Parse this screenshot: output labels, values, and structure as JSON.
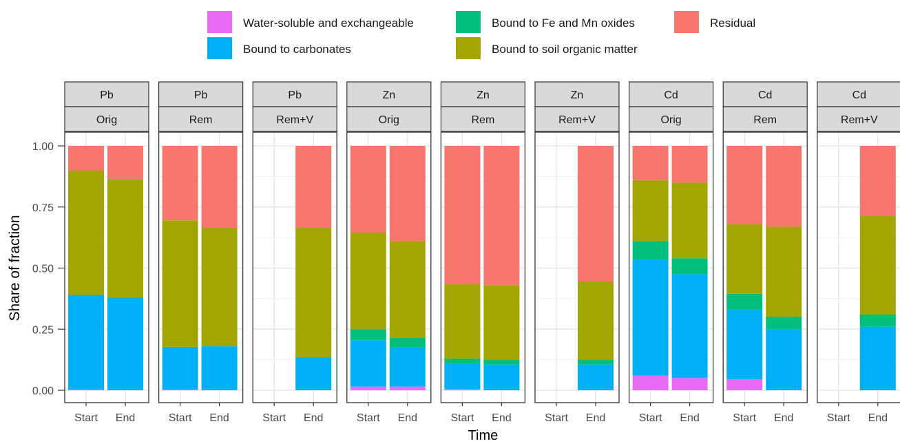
{
  "chart_data": {
    "type": "bar",
    "stacked": true,
    "xlabel": "Time",
    "ylabel": "Share of fraction",
    "ylim": [
      0,
      1
    ],
    "yticks": [
      "0.00",
      "0.25",
      "0.50",
      "0.75",
      "1.00"
    ],
    "categories": [
      "Start",
      "End"
    ],
    "legend_position": "top",
    "series": [
      {
        "name": "Water-soluble and exchangeable",
        "color": "#E76BF3"
      },
      {
        "name": "Bound to carbonates",
        "color": "#00B0F6"
      },
      {
        "name": "Bound to Fe and Mn oxides",
        "color": "#00BF7D"
      },
      {
        "name": "Bound to soil organic matter",
        "color": "#A3A500"
      },
      {
        "name": "Residual",
        "color": "#F8766D"
      }
    ],
    "legend_order": [
      0,
      2,
      4,
      1,
      3
    ],
    "panels": [
      {
        "metal": "Pb",
        "treatment": "Orig",
        "values": {
          "Start": [
            0.003,
            0.387,
            0.0,
            0.51,
            0.1
          ],
          "End": [
            0.0,
            0.38,
            0.0,
            0.485,
            0.135
          ]
        }
      },
      {
        "metal": "Pb",
        "treatment": "Rem",
        "values": {
          "Start": [
            0.003,
            0.175,
            0.0,
            0.517,
            0.305
          ],
          "End": [
            0.0,
            0.18,
            0.0,
            0.485,
            0.335
          ]
        }
      },
      {
        "metal": "Pb",
        "treatment": "Rem+V",
        "values": {
          "Start": null,
          "End": [
            0.0,
            0.135,
            0.0,
            0.53,
            0.335
          ]
        }
      },
      {
        "metal": "Zn",
        "treatment": "Orig",
        "values": {
          "Start": [
            0.015,
            0.19,
            0.045,
            0.395,
            0.355
          ],
          "End": [
            0.015,
            0.16,
            0.04,
            0.395,
            0.39
          ]
        }
      },
      {
        "metal": "Zn",
        "treatment": "Rem",
        "values": {
          "Start": [
            0.005,
            0.105,
            0.02,
            0.305,
            0.565
          ],
          "End": [
            0.0,
            0.105,
            0.02,
            0.305,
            0.57
          ]
        }
      },
      {
        "metal": "Zn",
        "treatment": "Rem+V",
        "values": {
          "Start": null,
          "End": [
            0.0,
            0.105,
            0.02,
            0.32,
            0.555
          ]
        }
      },
      {
        "metal": "Cd",
        "treatment": "Orig",
        "values": {
          "Start": [
            0.06,
            0.475,
            0.075,
            0.25,
            0.14
          ],
          "End": [
            0.05,
            0.425,
            0.065,
            0.31,
            0.15
          ]
        }
      },
      {
        "metal": "Cd",
        "treatment": "Rem",
        "values": {
          "Start": [
            0.045,
            0.285,
            0.065,
            0.285,
            0.32
          ],
          "End": [
            0.0,
            0.25,
            0.05,
            0.37,
            0.33
          ]
        }
      },
      {
        "metal": "Cd",
        "treatment": "Rem+V",
        "values": {
          "Start": null,
          "End": [
            0.0,
            0.26,
            0.05,
            0.405,
            0.285
          ]
        }
      }
    ]
  }
}
